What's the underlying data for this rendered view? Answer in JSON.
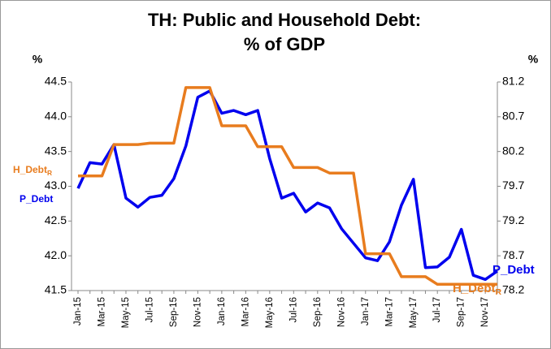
{
  "chart_data": {
    "type": "line",
    "title": [
      "TH: Public and Household Debt:",
      "% of GDP"
    ],
    "y_unit": "%",
    "y2_unit": "%",
    "categories": [
      "Jan-15",
      null,
      "Mar-15",
      null,
      "May-15",
      null,
      "Jul-15",
      null,
      "Sep-15",
      null,
      "Nov-15",
      null,
      "Jan-16",
      null,
      "Mar-16",
      null,
      "May-16",
      null,
      "Jul-16",
      null,
      "Sep-16",
      null,
      "Nov-16",
      null,
      "Jan-17",
      null,
      "Mar-17",
      null,
      "May-17",
      null,
      "Jul-17",
      null,
      "Sep-17",
      null,
      "Nov-17",
      null
    ],
    "series": [
      {
        "name": "P_Debt",
        "color": "#0000ee",
        "axis": "y",
        "values": [
          42.97,
          43.34,
          43.32,
          43.6,
          42.83,
          42.7,
          42.84,
          42.87,
          43.11,
          43.58,
          44.28,
          44.37,
          44.05,
          44.09,
          44.03,
          44.09,
          43.4,
          42.83,
          42.9,
          42.63,
          42.76,
          42.69,
          42.39,
          42.18,
          41.97,
          41.93,
          42.2,
          42.73,
          43.1,
          41.83,
          41.84,
          41.98,
          42.38,
          41.72,
          41.66,
          41.78
        ]
      },
      {
        "name": "H_Debt",
        "name_subscript": "R",
        "color": "#e87c1e",
        "axis": "y2",
        "values": [
          79.85,
          79.85,
          79.85,
          80.3,
          80.3,
          80.3,
          80.32,
          80.32,
          80.32,
          81.12,
          81.12,
          81.12,
          80.57,
          80.57,
          80.57,
          80.27,
          80.27,
          80.27,
          79.97,
          79.97,
          79.97,
          79.89,
          79.89,
          79.89,
          78.73,
          78.73,
          78.73,
          78.4,
          78.4,
          78.4,
          78.29,
          78.29,
          78.29,
          78.29,
          78.29,
          78.29
        ]
      }
    ],
    "ylim": [
      41.5,
      44.5
    ],
    "yticks": [
      41.5,
      {
        "value": 42,
        "label": "42.0"
      },
      42.5,
      {
        "value": 43,
        "label": "43.0"
      },
      43.5,
      {
        "value": 44,
        "label": "44.0"
      },
      44.5
    ],
    "y2lim": [
      78.2,
      81.2
    ],
    "y2ticks": [
      78.2,
      78.7,
      79.2,
      79.7,
      80.2,
      80.7,
      81.2
    ],
    "grid": false
  }
}
